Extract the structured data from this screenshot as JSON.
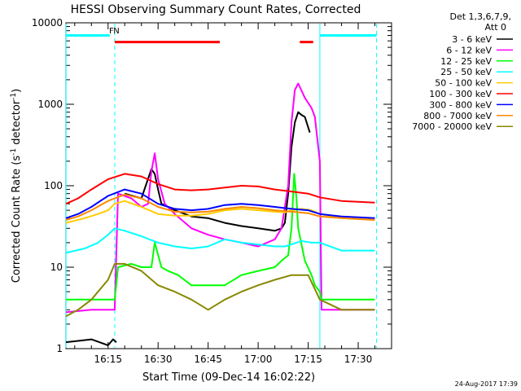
{
  "chart_data": {
    "type": "line",
    "title": "HESSI Observing Summary Count Rates, Corrected",
    "xlabel": "Start Time (09-Dec-14 16:02:22)",
    "ylabel": "Corrected Count Rate (s⁻¹ detector⁻¹)",
    "ylabel_main": "Corrected Count Rate (s",
    "ylabel_sup1": "-1",
    "ylabel_mid": " detector",
    "ylabel_sup2": "-1",
    "ylabel_end": ")",
    "y_scale": "log",
    "ylim": [
      1,
      10000
    ],
    "xlim": [
      "16:02:22",
      "17:40:00"
    ],
    "xlim_min": [
      962.37,
      1060.0
    ],
    "x_ticks": [
      {
        "label": "16:15",
        "min": 975
      },
      {
        "label": "16:30",
        "min": 990
      },
      {
        "label": "16:45",
        "min": 1005
      },
      {
        "label": "17:00",
        "min": 1020
      },
      {
        "label": "17:15",
        "min": 1035
      },
      {
        "label": "17:30",
        "min": 1050
      }
    ],
    "y_ticks": [
      {
        "label": "1",
        "v": 1
      },
      {
        "label": "10",
        "v": 10
      },
      {
        "label": "100",
        "v": 100
      },
      {
        "label": "1000",
        "v": 1000
      },
      {
        "label": "10000",
        "v": 10000
      }
    ],
    "legend": {
      "placement": "outside-right",
      "header_line1": "Det 1,3,6,7,9,",
      "header_line2": "Att 0"
    },
    "series": [
      {
        "name": "3 - 6 keV",
        "color": "#000000",
        "x": [
          962.4,
          970,
          975,
          976.5,
          977.5,
          978,
          980,
          985,
          988,
          989,
          990,
          991,
          993,
          995,
          1000,
          1005,
          1010,
          1015,
          1020,
          1025,
          1027,
          1028,
          1029,
          1030,
          1031,
          1032,
          1033,
          1034,
          1035.5,
          1037,
          1038.5,
          1039,
          1039.5
        ],
        "y": [
          1.2,
          1.3,
          1.1,
          1.3,
          1.2,
          null,
          80,
          70,
          160,
          140,
          90,
          60,
          55,
          50,
          42,
          40,
          35,
          32,
          30,
          28,
          30,
          35,
          80,
          300,
          600,
          800,
          740,
          700,
          450,
          null,
          null,
          null,
          null
        ]
      },
      {
        "name": "6 - 12 keV",
        "color": "#ff00ff",
        "x": [
          962.4,
          970,
          977,
          978,
          982,
          985,
          987,
          988,
          989,
          990,
          992,
          995,
          1000,
          1005,
          1010,
          1015,
          1020,
          1025,
          1027,
          1029,
          1030,
          1031,
          1032,
          1034,
          1036,
          1037,
          1038.5,
          1039,
          1045,
          1055
        ],
        "y": [
          2.8,
          3,
          3,
          80,
          70,
          55,
          60,
          150,
          250,
          120,
          60,
          45,
          30,
          25,
          22,
          20,
          18,
          22,
          30,
          100,
          600,
          1500,
          1800,
          1200,
          900,
          700,
          200,
          3,
          3,
          3
        ]
      },
      {
        "name": "12 - 25 keV",
        "color": "#00ff00",
        "x": [
          962.4,
          970,
          977,
          978,
          982,
          985,
          988,
          989,
          991,
          993,
          996,
          1000,
          1010,
          1015,
          1020,
          1025,
          1027,
          1029,
          1030,
          1030.8,
          1031.5,
          1032,
          1034,
          1036,
          1037,
          1038.5,
          1039,
          1045,
          1055
        ],
        "y": [
          4,
          4,
          4,
          10,
          11,
          10,
          10,
          20,
          10,
          9,
          8,
          6,
          6,
          8,
          9,
          10,
          12,
          14,
          30,
          140,
          70,
          30,
          12,
          8,
          6,
          5,
          4,
          4,
          4
        ]
      },
      {
        "name": "25 - 50 keV",
        "color": "#00ffff",
        "x": [
          962.4,
          968,
          972,
          975,
          977,
          980,
          985,
          990,
          995,
          1000,
          1005,
          1010,
          1015,
          1020,
          1025,
          1028,
          1030,
          1033,
          1036,
          1038.5,
          1045,
          1055
        ],
        "y": [
          15,
          17,
          20,
          25,
          30,
          28,
          24,
          20,
          18,
          17,
          18,
          22,
          20,
          19,
          18,
          18,
          19,
          21,
          20,
          20,
          16,
          16
        ]
      },
      {
        "name": "50 - 100 keV",
        "color": "#ffcc00",
        "x": [
          962.4,
          968,
          972,
          975,
          977,
          980,
          985,
          990,
          995,
          1000,
          1005,
          1010,
          1015,
          1020,
          1025,
          1028,
          1030,
          1033,
          1036,
          1038.5,
          1045,
          1055
        ],
        "y": [
          35,
          40,
          45,
          50,
          60,
          65,
          55,
          45,
          43,
          43,
          45,
          50,
          52,
          50,
          48,
          47,
          50,
          52,
          50,
          45,
          40,
          38
        ]
      },
      {
        "name": "100 - 300 keV",
        "color": "#ff0000",
        "x": [
          962.4,
          966,
          970,
          975,
          980,
          985,
          990,
          995,
          1000,
          1005,
          1010,
          1015,
          1020,
          1025,
          1030,
          1035,
          1038.5,
          1045,
          1055
        ],
        "y": [
          60,
          70,
          90,
          120,
          140,
          130,
          105,
          90,
          88,
          90,
          95,
          100,
          98,
          90,
          85,
          80,
          72,
          65,
          62
        ]
      },
      {
        "name": "300 - 800 keV",
        "color": "#0000ff",
        "x": [
          962.4,
          966,
          970,
          975,
          980,
          985,
          990,
          995,
          1000,
          1005,
          1010,
          1015,
          1020,
          1025,
          1030,
          1035,
          1038.5,
          1045,
          1055
        ],
        "y": [
          40,
          45,
          55,
          75,
          90,
          80,
          60,
          52,
          50,
          52,
          58,
          60,
          58,
          55,
          52,
          50,
          45,
          42,
          40
        ]
      },
      {
        "name": "800 - 7000 keV",
        "color": "#ff8800",
        "x": [
          962.4,
          966,
          970,
          975,
          980,
          985,
          990,
          995,
          1000,
          1005,
          1010,
          1015,
          1020,
          1025,
          1030,
          1035,
          1038.5,
          1045,
          1055
        ],
        "y": [
          38,
          42,
          50,
          65,
          78,
          70,
          55,
          48,
          47,
          48,
          52,
          55,
          53,
          50,
          48,
          46,
          42,
          40,
          38
        ]
      },
      {
        "name": "7000 - 20000 keV",
        "color": "#888800",
        "x": [
          962.4,
          966,
          970,
          975,
          977,
          980,
          985,
          990,
          995,
          1000,
          1005,
          1010,
          1015,
          1020,
          1025,
          1030,
          1035,
          1038.5,
          1045,
          1055
        ],
        "y": [
          2.5,
          3,
          4,
          7,
          11,
          11,
          9,
          6,
          5,
          4,
          3,
          4,
          5,
          6,
          7,
          8,
          8,
          4,
          3,
          3
        ]
      }
    ],
    "attenuator_intervals": [
      {
        "start": 962.4,
        "end": 975.5,
        "color": "#00ffff",
        "level": 7000
      },
      {
        "start": 1038.5,
        "end": 1055.5,
        "color": "#00ffff",
        "level": 7000
      }
    ],
    "flare_intervals": [
      {
        "start": 977,
        "end": 1008.5,
        "color": "#ff0000",
        "level": 5800
      },
      {
        "start": 1032.5,
        "end": 1036.5,
        "color": "#ff0000",
        "level": 5800
      }
    ],
    "vertical_markers": [
      {
        "at": 962.4,
        "style": "solid",
        "color": "#00ffff"
      },
      {
        "at": 977,
        "style": "dashed",
        "color": "#00ffff"
      },
      {
        "at": 1038.5,
        "style": "solid",
        "color": "#00ffff"
      },
      {
        "at": 1055.5,
        "style": "dashed",
        "color": "#00ffff"
      }
    ],
    "flag_labels": [
      {
        "text": "F",
        "at": 976,
        "color": "#ff0000"
      },
      {
        "text": "N",
        "at": 977.5,
        "color": "#00ffff"
      }
    ]
  },
  "footer": {
    "timestamp": "24-Aug-2017 17:39"
  }
}
